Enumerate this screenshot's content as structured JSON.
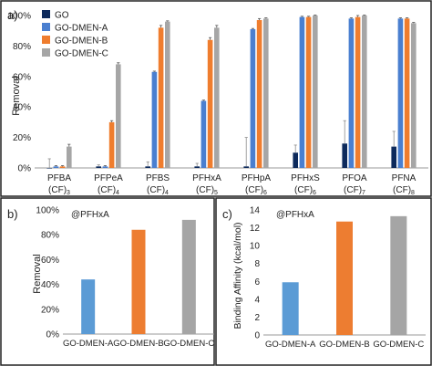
{
  "chart_data": [
    {
      "panel_label": "a)",
      "type": "bar",
      "ylabel": "Removal",
      "ylim": [
        0,
        100
      ],
      "yticks": [
        "0%",
        "20%",
        "40%",
        "60%",
        "80%",
        "100%"
      ],
      "categories": [
        {
          "name": "PFBA",
          "sub": "(CF)",
          "n": "3"
        },
        {
          "name": "PFPeA",
          "sub": "(CF)",
          "n": "4"
        },
        {
          "name": "PFBS",
          "sub": "(CF)",
          "n": "4"
        },
        {
          "name": "PFHxA",
          "sub": "(CF)",
          "n": "5"
        },
        {
          "name": "PFHpA",
          "sub": "(CF)",
          "n": "6"
        },
        {
          "name": "PFHxS",
          "sub": "(CF)",
          "n": "6"
        },
        {
          "name": "PFOA",
          "sub": "(CF)",
          "n": "7"
        },
        {
          "name": "PFNA",
          "sub": "(CF)",
          "n": "8"
        }
      ],
      "series": [
        {
          "name": "GO",
          "color": "#0d2a5c",
          "values": [
            0,
            1,
            1,
            1,
            1,
            10,
            16,
            14
          ],
          "errors": [
            6,
            1,
            3,
            2,
            19,
            5,
            15,
            10
          ]
        },
        {
          "name": "GO-DMEN-A",
          "color": "#4a7fd0",
          "values": [
            1,
            1,
            63,
            44,
            91,
            99,
            98,
            98
          ],
          "errors": [
            0.5,
            0.5,
            0.5,
            0.5,
            0.5,
            0.5,
            0.5,
            0.5
          ]
        },
        {
          "name": "GO-DMEN-B",
          "color": "#ef7d2e",
          "values": [
            1,
            30,
            92,
            84,
            97,
            99,
            99,
            98
          ],
          "errors": [
            0.5,
            1,
            1.5,
            1.5,
            1,
            0.5,
            1,
            0.5
          ]
        },
        {
          "name": "GO-DMEN-C",
          "color": "#a6a6a6",
          "values": [
            14,
            68,
            96,
            92,
            98,
            100,
            100,
            95
          ],
          "errors": [
            1.5,
            1,
            0.5,
            1.5,
            0.5,
            0.3,
            0.3,
            0.5
          ]
        }
      ],
      "legend_position": "top-left",
      "grid": false
    },
    {
      "panel_label": "b)",
      "type": "bar",
      "annotation": "@PFHxA",
      "ylabel": "Removal",
      "ylim": [
        0,
        100
      ],
      "yticks": [
        "0%",
        "20%",
        "40%",
        "60%",
        "80%",
        "100%"
      ],
      "categories": [
        "GO-DMEN-A",
        "GO-DMEN-B",
        "GO-DMEN-C"
      ],
      "values": [
        44,
        84,
        92
      ],
      "colors": [
        "#5b9bd5",
        "#ed7d31",
        "#a5a5a5"
      ],
      "grid": false
    },
    {
      "panel_label": "c)",
      "type": "bar",
      "annotation": "@PFHxA",
      "ylabel": "Binding Affinity (kcal/mol)",
      "ylim": [
        0,
        14
      ],
      "yticks": [
        "0",
        "2",
        "4",
        "6",
        "8",
        "10",
        "12",
        "14"
      ],
      "categories": [
        "GO-DMEN-A",
        "GO-DMEN-B",
        "GO-DMEN-C"
      ],
      "values": [
        5.9,
        12.7,
        13.3
      ],
      "colors": [
        "#5b9bd5",
        "#ed7d31",
        "#a5a5a5"
      ],
      "grid": false
    }
  ]
}
